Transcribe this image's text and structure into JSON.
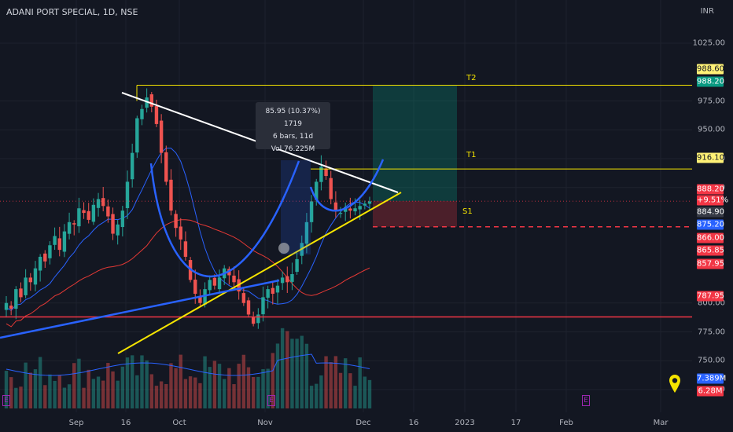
{
  "header": {
    "symbol_title": "ADANI PORT SPECIAL, 1D, NSE",
    "currency": "INR"
  },
  "price_axis": {
    "ticks": [
      "1025.00",
      "975.00",
      "950.00",
      "925.00",
      "900.00",
      "800.00",
      "775.00",
      "750.00",
      "725.00"
    ],
    "tags": [
      {
        "text": "988.60",
        "bg": "#fff176",
        "fg": "#131722"
      },
      {
        "text": "988.20",
        "bg": "#089981",
        "fg": "#ffffff"
      },
      {
        "text": "916.10",
        "bg": "#fff176",
        "fg": "#131722"
      },
      {
        "text": "888.20",
        "bg": "#f23645",
        "fg": "#ffffff"
      },
      {
        "text": "+9.51%",
        "bg": "#f23645",
        "fg": "#ffffff"
      },
      {
        "text": "884.90",
        "bg": "#363a45",
        "fg": "#ffffff"
      },
      {
        "text": "875.20",
        "bg": "#2962ff",
        "fg": "#ffffff"
      },
      {
        "text": "866.00",
        "bg": "#f23645",
        "fg": "#ffffff"
      },
      {
        "text": "865.85",
        "bg": "#f23645",
        "fg": "#ffffff"
      },
      {
        "text": "857.95",
        "bg": "#f23645",
        "fg": "#ffffff"
      },
      {
        "text": "787.95",
        "bg": "#f23645",
        "fg": "#ffffff"
      },
      {
        "text": "7.389M",
        "bg": "#2962ff",
        "fg": "#ffffff"
      },
      {
        "text": "6.28M",
        "bg": "#f23645",
        "fg": "#ffffff"
      }
    ]
  },
  "time_axis": {
    "ticks": [
      "Sep",
      "16",
      "Oct",
      "Nov",
      "Dec",
      "16",
      "2023",
      "17",
      "Feb",
      "Mar"
    ]
  },
  "tooltip": {
    "line1": "85.95 (10.37%) 1719",
    "line2": "6 bars, 11d",
    "line3": "Vol 76.225M"
  },
  "labels": {
    "t2": "T2",
    "t1": "T1",
    "s1": "S1"
  },
  "earnings_badge": "E",
  "colors": {
    "bg": "#131722",
    "up": "#26a69a",
    "down": "#ef5350",
    "ma_blue": "#2962ff",
    "ma_red": "#e53935",
    "yellow": "#f5e400"
  },
  "chart_data": {
    "type": "candlestick",
    "symbol": "ADANI PORT SPECIAL",
    "interval": "1D",
    "exchange": "NSE",
    "ylim": [
      700,
      1040
    ],
    "levels": {
      "T2": 988.6,
      "target_box_top": 988.2,
      "T1": 916.1,
      "last": 888.2,
      "change_pct": 9.51,
      "stop_S1": 866.0,
      "support": 787.95
    },
    "closes": [
      800,
      795,
      812,
      805,
      822,
      818,
      830,
      840,
      836,
      850,
      858,
      846,
      862,
      870,
      868,
      882,
      878,
      872,
      885,
      890,
      884,
      875,
      860,
      868,
      880,
      905,
      930,
      960,
      968,
      978,
      970,
      955,
      930,
      905,
      880,
      865,
      855,
      840,
      820,
      808,
      800,
      812,
      820,
      815,
      822,
      830,
      824,
      818,
      810,
      800,
      790,
      782,
      790,
      805,
      812,
      808,
      815,
      822,
      818,
      825,
      838,
      852,
      870,
      888,
      905,
      918,
      910,
      890,
      880,
      878,
      883,
      880,
      882,
      884,
      886,
      888
    ],
    "volume_last": "6.28M",
    "volume_ma": "7.389M"
  }
}
